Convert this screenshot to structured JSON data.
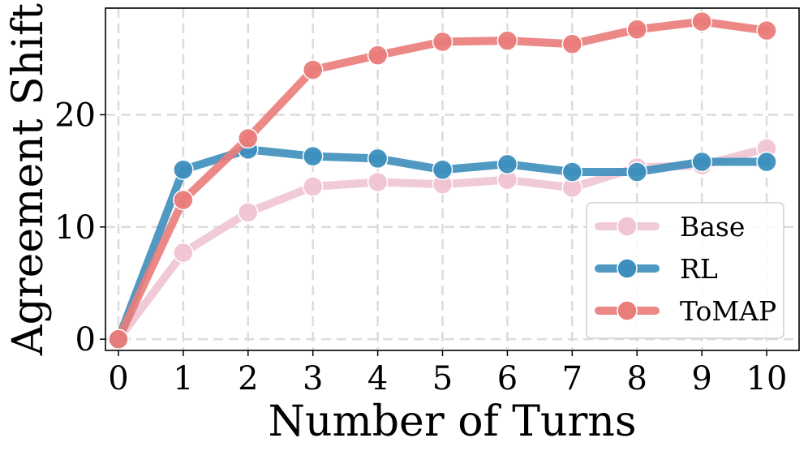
{
  "chart_data": {
    "type": "line",
    "title": "",
    "xlabel": "Number of Turns",
    "ylabel": "Agreement Shift",
    "x": [
      0,
      1,
      2,
      3,
      4,
      5,
      6,
      7,
      8,
      9,
      10
    ],
    "xlim": [
      -0.2,
      10.5
    ],
    "ylim": [
      -1,
      29.5
    ],
    "xticks": [
      "0",
      "1",
      "2",
      "3",
      "4",
      "5",
      "6",
      "7",
      "8",
      "9",
      "10"
    ],
    "yticks": [
      "0",
      "10",
      "20"
    ],
    "ytick_values": [
      0,
      10,
      20
    ],
    "grid": true,
    "legend_position": "lower-right",
    "series": [
      {
        "name": "Base",
        "color": "#f0c4d4",
        "values": [
          0,
          7.7,
          11.3,
          13.6,
          14.0,
          13.8,
          14.2,
          13.5,
          15.3,
          15.5,
          17.0
        ]
      },
      {
        "name": "RL",
        "color": "#3c8ebd",
        "values": [
          0,
          15.1,
          16.9,
          16.3,
          16.1,
          15.1,
          15.6,
          14.9,
          14.9,
          15.8,
          15.8
        ]
      },
      {
        "name": "ToMAP",
        "color": "#ea7c7a",
        "values": [
          0,
          12.4,
          17.9,
          24.0,
          25.3,
          26.5,
          26.6,
          26.3,
          27.6,
          28.3,
          27.5
        ]
      }
    ]
  }
}
